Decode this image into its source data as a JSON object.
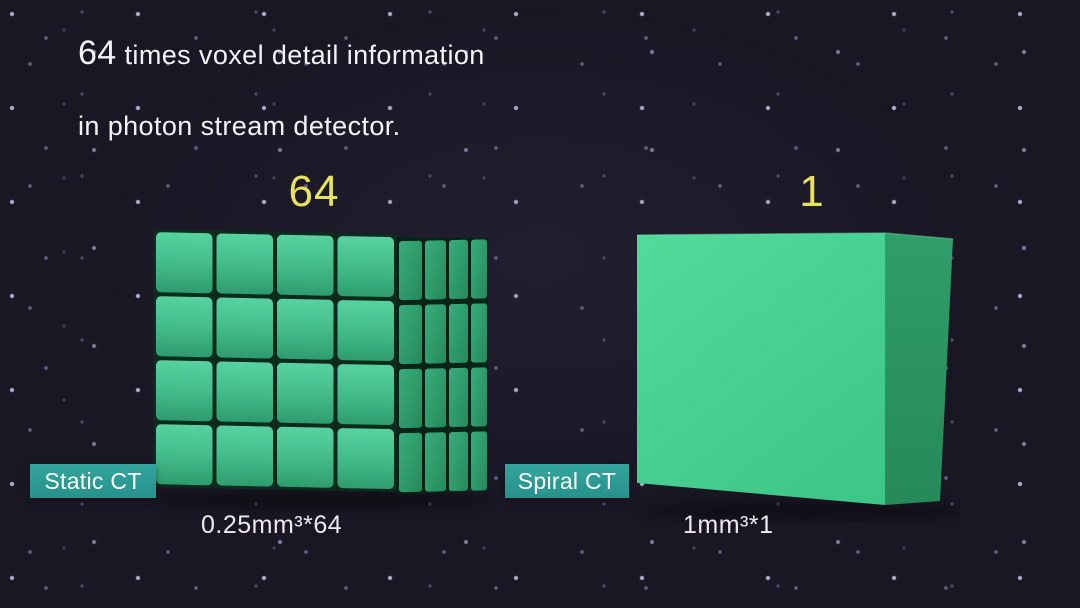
{
  "title": {
    "big_number": "64",
    "line1_rest": " times voxel detail information",
    "line2": "in photon stream detector."
  },
  "comparison": {
    "left": {
      "count": "64",
      "tag": "Static CT",
      "caption": "0.25mm³*64",
      "grid": {
        "rows": 4,
        "cols": 4,
        "side_cols": 4
      }
    },
    "right": {
      "count": "1",
      "tag": "Spiral CT",
      "caption": "1mm³*1",
      "grid": {
        "rows": 1,
        "cols": 1
      }
    }
  },
  "colors": {
    "background": "#191724",
    "dot": "#aca7de",
    "title_text": "#f3f2f6",
    "accent_yellow": "#e7e15d",
    "tag_background": "#2d9e96",
    "tag_text": "#ffffff",
    "voxel_cell_light": "#58d3a0",
    "voxel_cell_mid": "#41ba88",
    "voxel_cell_dark": "#2f9c6e",
    "voxel_gap": "#0d2a1e",
    "cube_side": "#2f9e69",
    "cube_side_dark": "#27895a",
    "solid_front_light": "#52db9b",
    "solid_front_dark": "#3fc78a"
  }
}
